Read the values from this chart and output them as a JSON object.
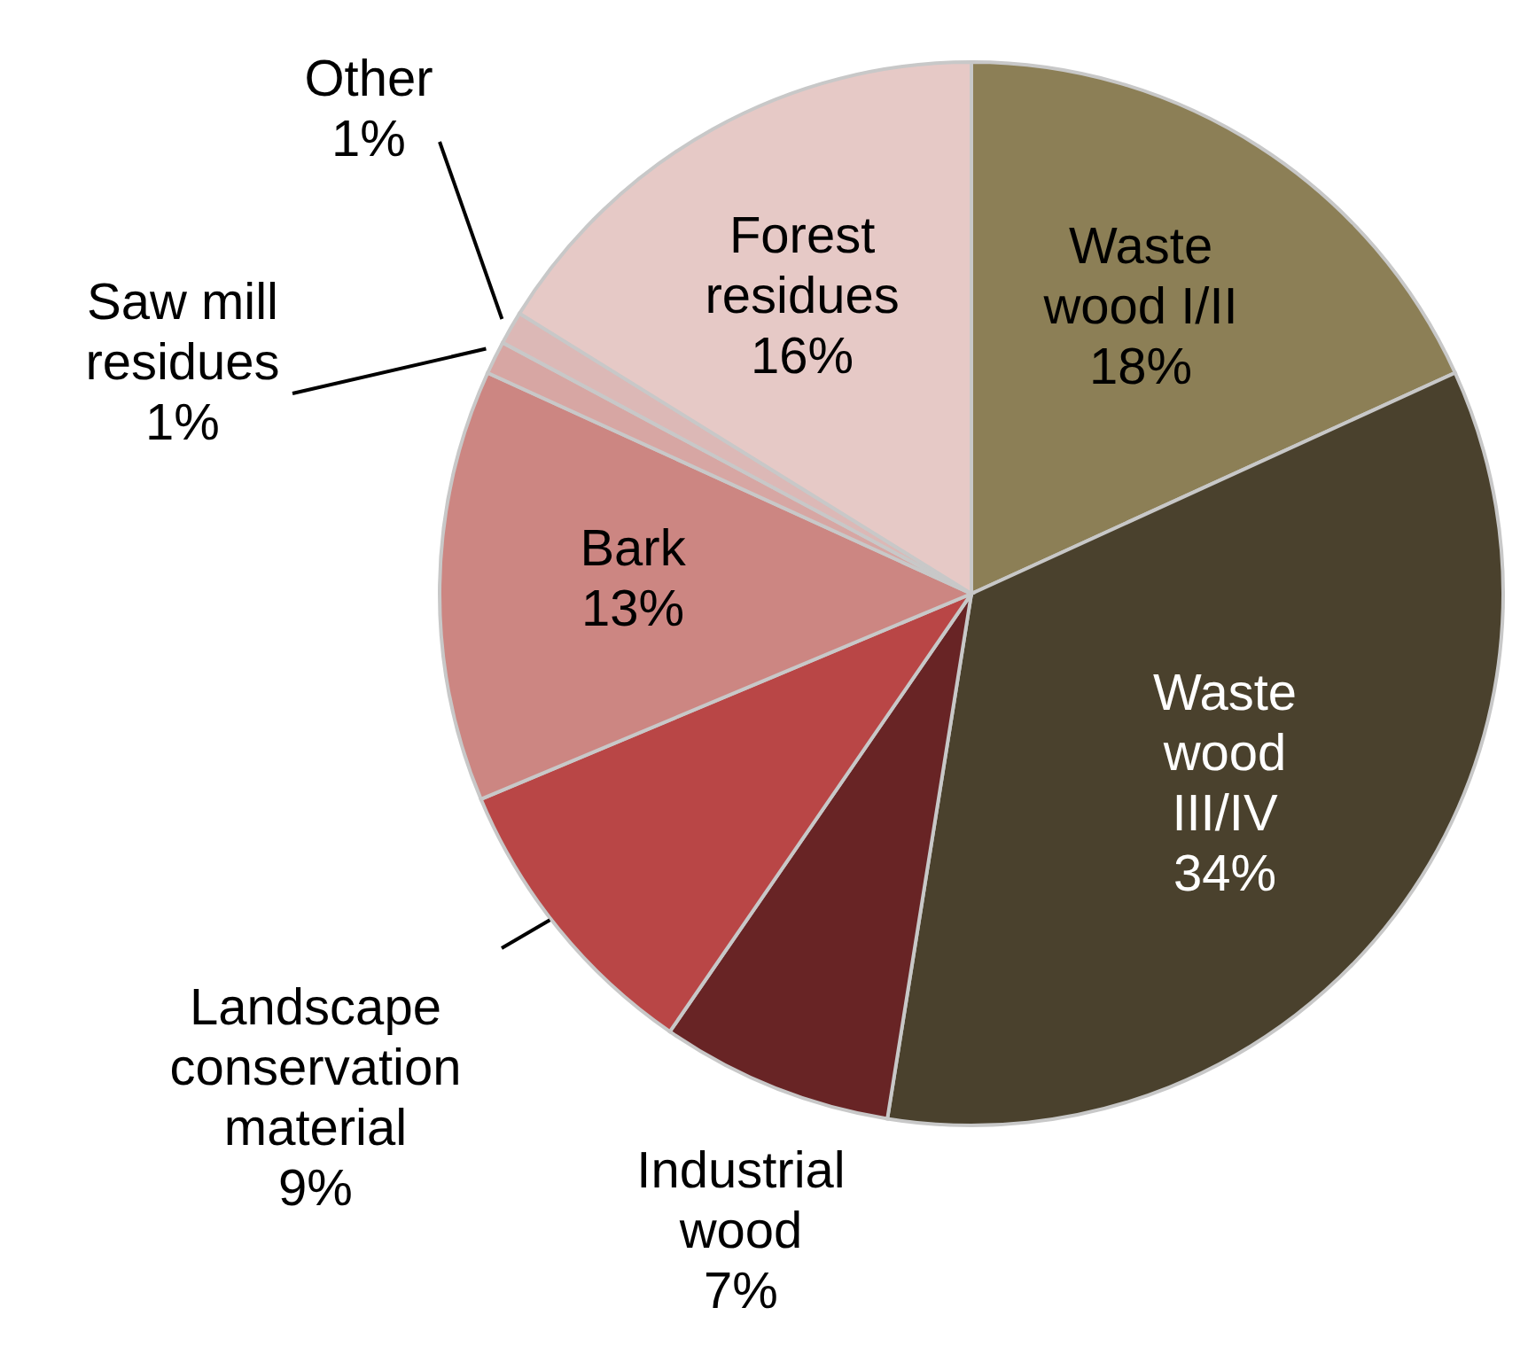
{
  "chart_data": {
    "type": "pie",
    "categories": [
      "Waste wood I/II",
      "Waste wood III/IV",
      "Industrial wood",
      "Landscape conservation material",
      "Bark",
      "Saw mill residues",
      "Other",
      "Forest residues"
    ],
    "values": [
      18,
      34,
      7,
      9,
      13,
      1,
      1,
      16
    ],
    "value_labels": [
      "18%",
      "34%",
      "7%",
      "9%",
      "13%",
      "1%",
      "1%",
      "16%"
    ],
    "colors": [
      "#8c7f56",
      "#4a412d",
      "#682425",
      "#b94646",
      "#cc8682",
      "#d7a6a3",
      "#dcb8b6",
      "#e6c9c6"
    ]
  }
}
